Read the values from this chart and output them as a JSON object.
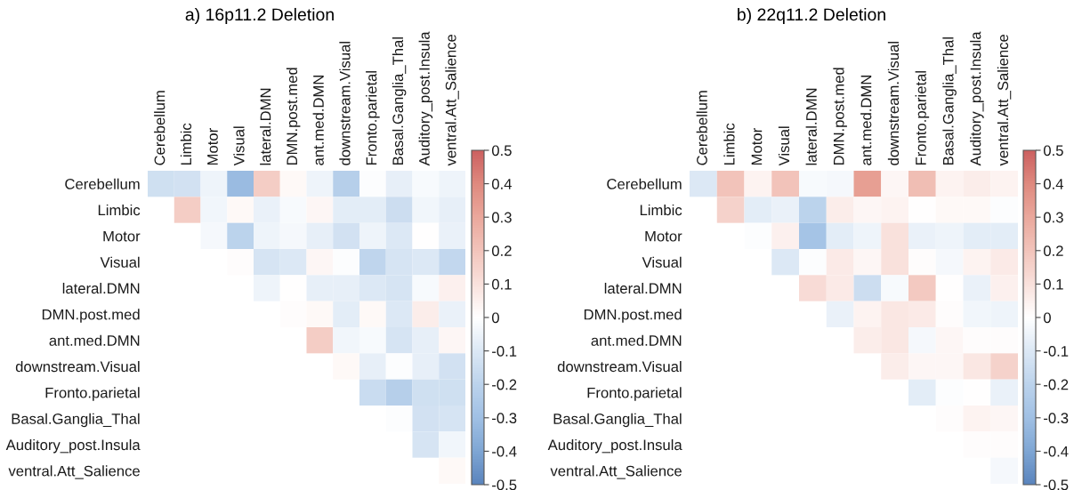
{
  "chart_data": [
    {
      "type": "heatmap",
      "title": "a) 16p11.2 Deletion",
      "categories": [
        "Cerebellum",
        "Limbic",
        "Motor",
        "Visual",
        "lateral.DMN",
        "DMN.post.med",
        "ant.med.DMN",
        "downstream.Visual",
        "Fronto.parietal",
        "Basal.Ganglia_Thal",
        "Auditory_post.Insula",
        "ventral.Att_Salience"
      ],
      "y_categories": [
        "Cerebellum",
        "Limbic",
        "Motor",
        "Visual",
        "lateral.DMN",
        "DMN.post.med",
        "ant.med.DMN",
        "downstream.Visual",
        "Fronto.parietal",
        "Basal.Ganglia_Thal",
        "Auditory_post.Insula",
        "ventral.Att_Salience"
      ],
      "cells": [
        [
          -0.14,
          -0.13,
          -0.05,
          -0.32,
          0.17,
          0.02,
          -0.05,
          -0.22,
          -0.01,
          -0.07,
          -0.02,
          -0.05
        ],
        [
          null,
          0.17,
          -0.04,
          0.02,
          -0.06,
          -0.02,
          0.03,
          -0.08,
          -0.08,
          -0.15,
          -0.04,
          -0.07
        ],
        [
          null,
          null,
          -0.03,
          -0.2,
          -0.05,
          -0.03,
          -0.07,
          -0.13,
          -0.05,
          -0.1,
          0.0,
          -0.06
        ],
        [
          null,
          null,
          null,
          0.01,
          -0.12,
          -0.1,
          0.03,
          -0.01,
          -0.19,
          -0.12,
          -0.1,
          -0.18
        ],
        [
          null,
          null,
          null,
          null,
          -0.05,
          0.0,
          -0.07,
          -0.07,
          -0.1,
          -0.12,
          -0.02,
          0.05
        ],
        [
          null,
          null,
          null,
          null,
          null,
          0.01,
          0.02,
          -0.08,
          0.02,
          -0.1,
          0.06,
          -0.06
        ],
        [
          null,
          null,
          null,
          null,
          null,
          null,
          0.17,
          -0.04,
          -0.02,
          -0.12,
          -0.07,
          0.03
        ],
        [
          null,
          null,
          null,
          null,
          null,
          null,
          null,
          0.02,
          -0.07,
          -0.01,
          -0.07,
          -0.13
        ],
        [
          null,
          null,
          null,
          null,
          null,
          null,
          null,
          null,
          -0.16,
          -0.22,
          -0.14,
          -0.14
        ],
        [
          null,
          null,
          null,
          null,
          null,
          null,
          null,
          null,
          null,
          -0.01,
          -0.13,
          -0.12
        ],
        [
          null,
          null,
          null,
          null,
          null,
          null,
          null,
          null,
          null,
          null,
          -0.12,
          -0.04
        ],
        [
          null,
          null,
          null,
          null,
          null,
          null,
          null,
          null,
          null,
          null,
          null,
          0.02
        ]
      ],
      "clim": [
        -0.5,
        0.5
      ],
      "cticks": [
        -0.5,
        -0.4,
        -0.3,
        -0.2,
        -0.1,
        0,
        0.1,
        0.2,
        0.3,
        0.4,
        0.5
      ]
    },
    {
      "type": "heatmap",
      "title": "b) 22q11.2 Deletion",
      "categories": [
        "Cerebellum",
        "Limbic",
        "Motor",
        "Visual",
        "lateral.DMN",
        "DMN.post.med",
        "ant.med.DMN",
        "downstream.Visual",
        "Fronto.parietal",
        "Basal.Ganglia_Thal",
        "Auditory_post.Insula",
        "ventral.Att_Salience"
      ],
      "y_categories": [
        "Cerebellum",
        "Limbic",
        "Motor",
        "Visual",
        "lateral.DMN",
        "DMN.post.med",
        "ant.med.DMN",
        "downstream.Visual",
        "Fronto.parietal",
        "Basal.Ganglia_Thal",
        "Auditory_post.Insula",
        "ventral.Att_Salience"
      ],
      "cells": [
        [
          -0.1,
          0.2,
          0.04,
          0.2,
          -0.02,
          -0.03,
          0.33,
          0.03,
          0.22,
          0.04,
          0.06,
          0.04
        ],
        [
          null,
          0.15,
          -0.08,
          -0.06,
          -0.2,
          0.06,
          0.03,
          0.04,
          0.0,
          0.02,
          0.02,
          -0.01
        ],
        [
          null,
          null,
          -0.01,
          0.05,
          -0.28,
          -0.08,
          -0.05,
          0.1,
          -0.06,
          -0.05,
          -0.08,
          -0.08
        ],
        [
          null,
          null,
          null,
          -0.1,
          -0.01,
          0.07,
          0.03,
          0.1,
          0.01,
          -0.03,
          0.04,
          0.07
        ],
        [
          null,
          null,
          null,
          null,
          0.12,
          0.07,
          -0.15,
          -0.02,
          0.18,
          0.0,
          -0.06,
          0.05
        ],
        [
          null,
          null,
          null,
          null,
          null,
          -0.06,
          0.04,
          0.08,
          0.07,
          0.01,
          -0.04,
          -0.05
        ],
        [
          null,
          null,
          null,
          null,
          null,
          null,
          0.06,
          0.08,
          -0.03,
          0.03,
          0.01,
          0.01
        ],
        [
          null,
          null,
          null,
          null,
          null,
          null,
          null,
          0.06,
          0.03,
          0.03,
          0.08,
          0.15
        ],
        [
          null,
          null,
          null,
          null,
          null,
          null,
          null,
          null,
          -0.08,
          -0.01,
          0.0,
          -0.06
        ],
        [
          null,
          null,
          null,
          null,
          null,
          null,
          null,
          null,
          null,
          0.01,
          0.04,
          0.03
        ],
        [
          null,
          null,
          null,
          null,
          null,
          null,
          null,
          null,
          null,
          null,
          0.01,
          0.01
        ],
        [
          null,
          null,
          null,
          null,
          null,
          null,
          null,
          null,
          null,
          null,
          null,
          -0.03
        ]
      ],
      "clim": [
        -0.5,
        0.5
      ],
      "cticks": [
        -0.5,
        -0.4,
        -0.3,
        -0.2,
        -0.1,
        0,
        0.1,
        0.2,
        0.3,
        0.4,
        0.5
      ]
    }
  ]
}
